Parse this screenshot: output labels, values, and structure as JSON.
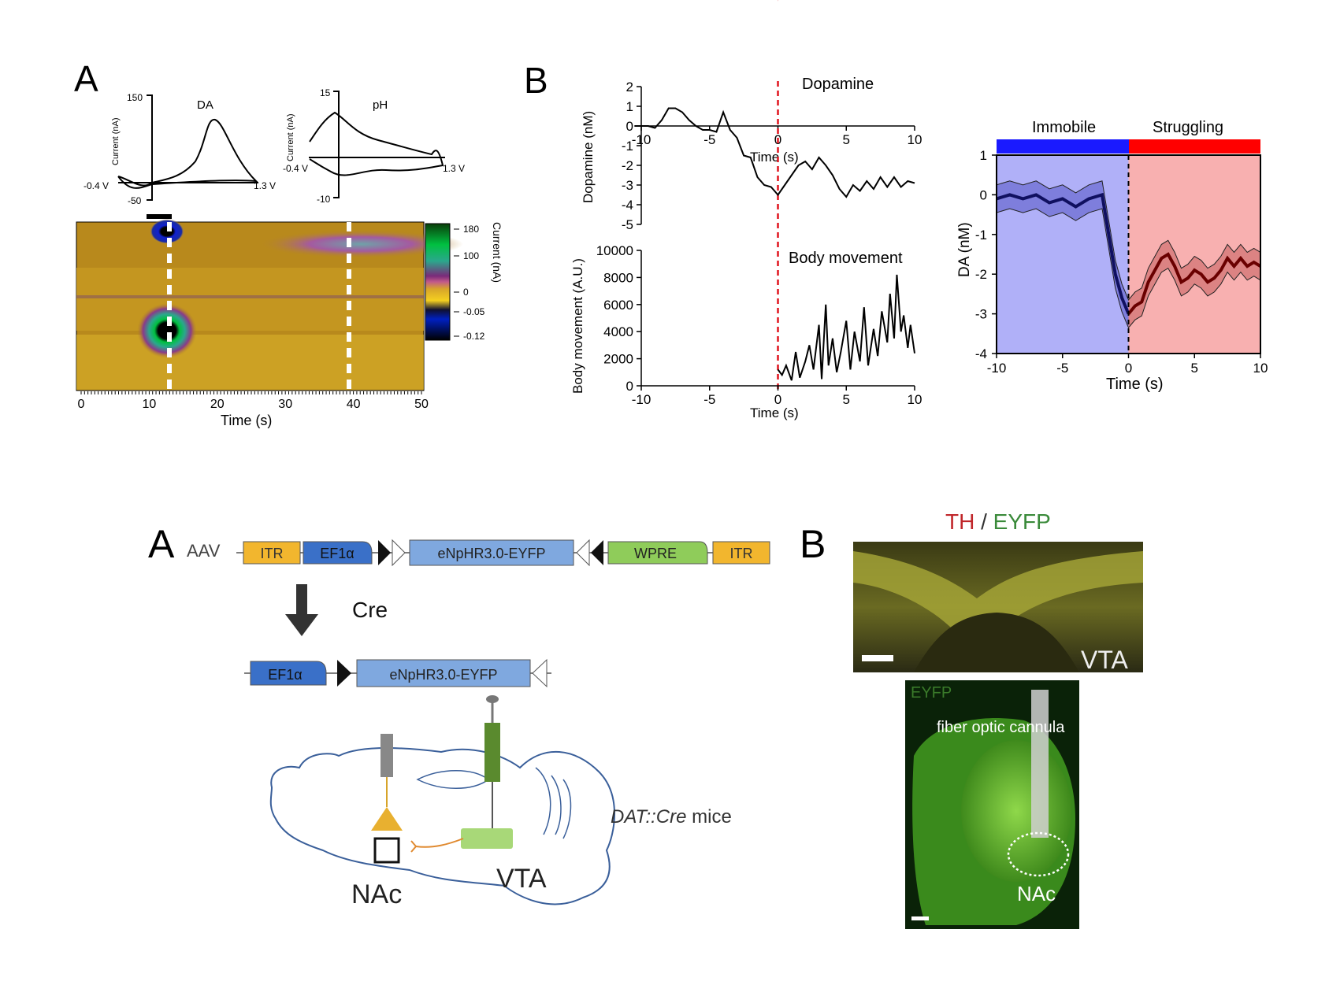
{
  "top_panel_labels": {
    "a": "A",
    "b": "B"
  },
  "bottom_panel_labels": {
    "a": "A",
    "b": "B"
  },
  "cv_da": {
    "title": "DA",
    "ylabel": "Current (nA)",
    "y_top": "150",
    "y_bottom": "-50",
    "x_left": "-0.4 V",
    "x_right": "1.3 V"
  },
  "cv_ph": {
    "title": "pH",
    "ylabel": "Current (nA)",
    "y_top": "15",
    "y_bottom": "-10",
    "x_left": "-0.4 V",
    "x_right": "1.3 V"
  },
  "colorplot": {
    "xlabel": "Time (s)",
    "xticks": [
      "0",
      "10",
      "20",
      "30",
      "40",
      "50"
    ],
    "colorbar_label": "Current (nA)",
    "colorbar_ticks": [
      "180",
      "100",
      "0",
      "-0.05",
      "-0.12"
    ],
    "markers_s": [
      13,
      39
    ]
  },
  "chart_data": [
    {
      "type": "line",
      "title": "Dopamine",
      "ylabel": "Dopamine (nM)",
      "xlabel": "Time (s)",
      "xlim": [
        -10,
        10
      ],
      "ylim": [
        -5,
        2
      ],
      "xticks": [
        "-10",
        "-5",
        "0",
        "5",
        "10"
      ],
      "yticks": [
        "2",
        "1",
        "0",
        "-1",
        "-2",
        "-3",
        "-4",
        "-5"
      ],
      "event_line_x": 0,
      "series": [
        {
          "x": [
            -10.5,
            -9.5,
            -9,
            -8.5,
            -8,
            -7.5,
            -7,
            -6.5,
            -6,
            -5.5,
            -5,
            -4.5,
            -4,
            -3.5,
            -3,
            -2.5,
            -2,
            -1.5,
            -1,
            -0.5,
            0,
            0.5,
            1,
            1.5,
            2,
            2.5,
            3,
            3.5,
            4,
            4.5,
            5,
            5.5,
            6,
            6.5,
            7,
            7.5,
            8,
            8.5,
            9,
            9.5,
            10
          ],
          "y": [
            0,
            0,
            -0.1,
            0.3,
            0.9,
            0.9,
            0.7,
            0.3,
            0,
            -0.2,
            -0.2,
            -0.3,
            0.7,
            -0.2,
            -0.6,
            -1.5,
            -1.6,
            -2.6,
            -3,
            -3.1,
            -3.5,
            -3,
            -2.5,
            -2,
            -1.8,
            -2.2,
            -1.6,
            -2,
            -2.5,
            -3.2,
            -3.6,
            -3,
            -3.3,
            -2.8,
            -3.2,
            -2.6,
            -3.1,
            -2.6,
            -3.1,
            -2.8,
            -2.9
          ]
        }
      ]
    },
    {
      "type": "line",
      "title": "Body movement",
      "ylabel": "Body movement (A.U.)",
      "xlabel": "Time (s)",
      "xlim": [
        -10,
        10
      ],
      "ylim": [
        0,
        10000
      ],
      "xticks": [
        "-10",
        "-5",
        "0",
        "5",
        "10"
      ],
      "yticks": [
        "10000",
        "8000",
        "6000",
        "4000",
        "2000",
        "0"
      ],
      "event_line_x": 0,
      "series": [
        {
          "x": [
            0,
            0.3,
            0.6,
            1,
            1.3,
            1.6,
            2,
            2.3,
            2.6,
            3,
            3.2,
            3.5,
            3.7,
            4,
            4.3,
            4.6,
            5,
            5.3,
            5.6,
            6,
            6.3,
            6.6,
            7,
            7.3,
            7.6,
            8,
            8.2,
            8.5,
            8.7,
            9,
            9.2,
            9.5,
            9.7,
            10
          ],
          "y": [
            1200,
            800,
            1500,
            400,
            2500,
            600,
            1800,
            3000,
            1200,
            4500,
            500,
            6000,
            1500,
            3500,
            1000,
            2500,
            4800,
            1200,
            4000,
            1800,
            5800,
            1500,
            4200,
            2200,
            5500,
            3200,
            6800,
            3500,
            8200,
            4000,
            5200,
            2800,
            4500,
            2400
          ]
        }
      ]
    },
    {
      "type": "line",
      "ylabel": "DA (nM)",
      "xlabel": "Time (s)",
      "xlim": [
        -10,
        10
      ],
      "ylim": [
        -4,
        1
      ],
      "xticks": [
        "-10",
        "-5",
        "0",
        "5",
        "10"
      ],
      "yticks": [
        "1",
        "0",
        "-1",
        "-2",
        "-3",
        "-4"
      ],
      "phase_labels": [
        "Immobile",
        "Struggling"
      ],
      "phase_colors": [
        "#1a1aff",
        "#ff0000"
      ],
      "series": [
        {
          "x": [
            -10,
            -9,
            -8,
            -7,
            -6,
            -5,
            -4,
            -3,
            -2,
            -1.5,
            -1,
            -0.5,
            0,
            0.5,
            1,
            1.5,
            2,
            2.5,
            3,
            3.5,
            4,
            4.5,
            5,
            5.5,
            6,
            6.5,
            7,
            7.5,
            8,
            8.5,
            9,
            9.5,
            10
          ],
          "y": [
            -0.1,
            0,
            -0.1,
            0,
            -0.2,
            -0.1,
            -0.3,
            -0.1,
            0,
            -1,
            -2,
            -2.6,
            -3,
            -2.8,
            -2.7,
            -2.2,
            -1.9,
            -1.6,
            -1.5,
            -1.8,
            -2.2,
            -2.1,
            -1.9,
            -2,
            -2.2,
            -2.1,
            -1.9,
            -1.6,
            -1.8,
            -1.6,
            -1.8,
            -1.7,
            -1.8
          ],
          "error": 0.35
        }
      ]
    }
  ],
  "construct": {
    "aav_label": "AAV",
    "itr": "ITR",
    "ef1a": "EF1α",
    "enphr": "eNpHR3.0-EYFP",
    "wpre": "WPRE",
    "cre_label": "Cre",
    "mice_label_italic": "DAT::Cre",
    "mice_label_rest": " mice",
    "nac": "NAc",
    "vta": "VTA"
  },
  "histology": {
    "title_th": "TH",
    "title_sep": " / ",
    "title_eyfp": "EYFP",
    "vta_label": "VTA",
    "eyfp_label": "EYFP",
    "cannula_label": "fiber optic cannula",
    "nac_label": "NAc"
  }
}
